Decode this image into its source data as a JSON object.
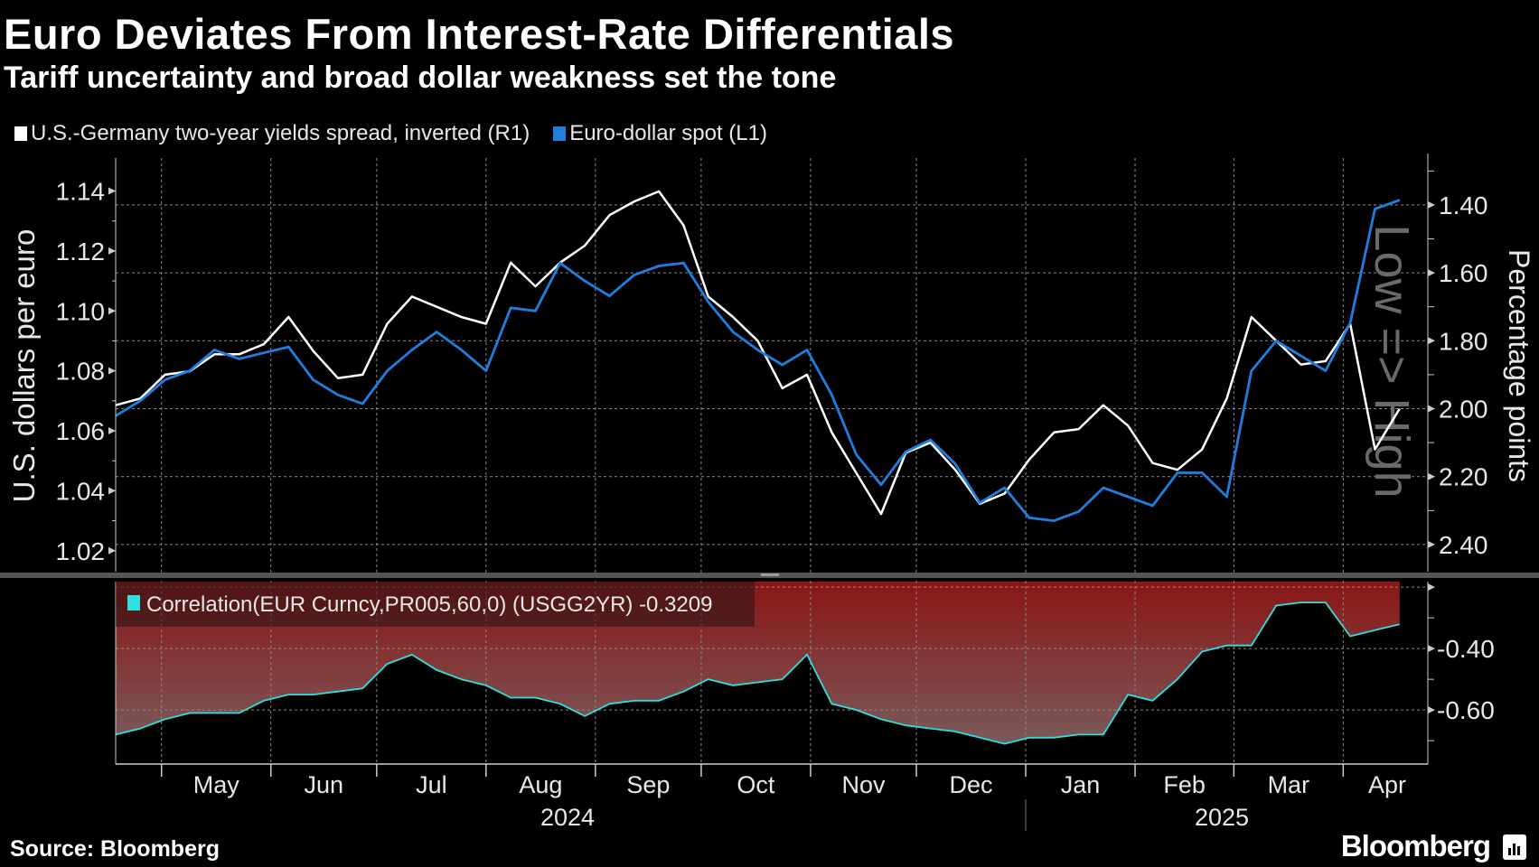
{
  "title": "Euro Deviates From Interest-Rate Differentials",
  "subtitle": "Tariff uncertainty and broad dollar weakness set the tone",
  "source": "Source: Bloomberg",
  "brand": "Bloomberg",
  "colors": {
    "spread": "#ffffff",
    "eurusd": "#1e7fe0",
    "correlation": "#2fe0e0",
    "fill_top": "#8a1616",
    "fill_bottom": "#7a5a5a",
    "background": "#000000"
  },
  "chart_data": [
    {
      "type": "line",
      "title": "Euro Deviates From Interest-Rate Differentials",
      "legend_placement": "top-left",
      "grid": true,
      "x": [
        "2024-04-18",
        "2024-04-25",
        "2024-05-02",
        "2024-05-09",
        "2024-05-16",
        "2024-05-23",
        "2024-05-30",
        "2024-06-06",
        "2024-06-13",
        "2024-06-20",
        "2024-06-27",
        "2024-07-04",
        "2024-07-11",
        "2024-07-18",
        "2024-07-25",
        "2024-08-01",
        "2024-08-08",
        "2024-08-15",
        "2024-08-22",
        "2024-08-29",
        "2024-09-05",
        "2024-09-12",
        "2024-09-19",
        "2024-09-26",
        "2024-10-03",
        "2024-10-10",
        "2024-10-17",
        "2024-10-24",
        "2024-10-31",
        "2024-11-07",
        "2024-11-14",
        "2024-11-21",
        "2024-11-28",
        "2024-12-05",
        "2024-12-12",
        "2024-12-19",
        "2024-12-26",
        "2025-01-02",
        "2025-01-09",
        "2025-01-16",
        "2025-01-23",
        "2025-01-30",
        "2025-02-06",
        "2025-02-13",
        "2025-02-20",
        "2025-02-27",
        "2025-03-06",
        "2025-03-13",
        "2025-03-20",
        "2025-03-27",
        "2025-04-03",
        "2025-04-10",
        "2025-04-17"
      ],
      "xlim": [
        "2024-04-18",
        "2025-04-25"
      ],
      "x_tick_labels": [
        "May",
        "Jun",
        "Jul",
        "Aug",
        "Sep",
        "Oct",
        "Nov",
        "Dec",
        "Jan",
        "Feb",
        "Mar",
        "Apr"
      ],
      "x_year_labels": [
        "2024",
        "2025"
      ],
      "ylabel_left": "U.S. dollars per euro",
      "ylim_left": [
        1.013,
        1.151
      ],
      "yticks_left": [
        "1.02",
        "1.04",
        "1.06",
        "1.08",
        "1.10",
        "1.12",
        "1.14"
      ],
      "ylabel_right": "Percentage points",
      "ylim_right": [
        1.262,
        2.48
      ],
      "right_axis_inverted": true,
      "yticks_right": [
        "1.40",
        "1.60",
        "1.80",
        "2.00",
        "2.20",
        "2.40"
      ],
      "right_axis_annotation": "Low => High",
      "series": [
        {
          "name": "U.S.-Germany two-year yields spread, inverted (R1)",
          "axis": "right",
          "values": [
            1.99,
            1.97,
            1.9,
            1.89,
            1.84,
            1.84,
            1.81,
            1.73,
            1.83,
            1.91,
            1.9,
            1.75,
            1.67,
            1.7,
            1.73,
            1.75,
            1.57,
            1.64,
            1.57,
            1.52,
            1.43,
            1.39,
            1.36,
            1.46,
            1.67,
            1.73,
            1.8,
            1.94,
            1.9,
            2.07,
            2.19,
            2.31,
            2.13,
            2.1,
            2.18,
            2.28,
            2.25,
            2.15,
            2.07,
            2.06,
            1.99,
            2.05,
            2.16,
            2.18,
            2.12,
            1.97,
            1.73,
            1.8,
            1.87,
            1.86,
            1.75,
            2.12,
            2.0
          ]
        },
        {
          "name": "Euro-dollar spot (L1)",
          "axis": "left",
          "values": [
            1.065,
            1.07,
            1.077,
            1.08,
            1.087,
            1.084,
            1.086,
            1.088,
            1.077,
            1.072,
            1.069,
            1.08,
            1.087,
            1.093,
            1.087,
            1.08,
            1.101,
            1.1,
            1.116,
            1.11,
            1.105,
            1.112,
            1.115,
            1.116,
            1.103,
            1.093,
            1.087,
            1.082,
            1.087,
            1.072,
            1.052,
            1.042,
            1.053,
            1.057,
            1.049,
            1.036,
            1.041,
            1.031,
            1.03,
            1.033,
            1.041,
            1.038,
            1.035,
            1.046,
            1.046,
            1.038,
            1.08,
            1.09,
            1.085,
            1.08,
            1.096,
            1.134,
            1.137
          ]
        }
      ]
    },
    {
      "type": "area",
      "legend_placement": "top-left",
      "grid": true,
      "ylim": [
        -0.776,
        -0.182
      ],
      "yticks": [
        "-0.40",
        "-0.60"
      ],
      "series": [
        {
          "name": "Correlation(EUR Curncy,PR005,60,0) (USGG2YR) -0.3209",
          "values": [
            -0.68,
            -0.66,
            -0.63,
            -0.61,
            -0.61,
            -0.61,
            -0.57,
            -0.55,
            -0.55,
            -0.54,
            -0.53,
            -0.45,
            -0.42,
            -0.47,
            -0.5,
            -0.52,
            -0.56,
            -0.56,
            -0.58,
            -0.62,
            -0.58,
            -0.57,
            -0.57,
            -0.54,
            -0.5,
            -0.52,
            -0.51,
            -0.5,
            -0.42,
            -0.58,
            -0.6,
            -0.63,
            -0.65,
            -0.66,
            -0.67,
            -0.69,
            -0.71,
            -0.69,
            -0.69,
            -0.68,
            -0.68,
            -0.55,
            -0.57,
            -0.5,
            -0.41,
            -0.39,
            -0.39,
            -0.26,
            -0.25,
            -0.25,
            -0.36,
            -0.34,
            -0.3209
          ]
        }
      ]
    }
  ]
}
